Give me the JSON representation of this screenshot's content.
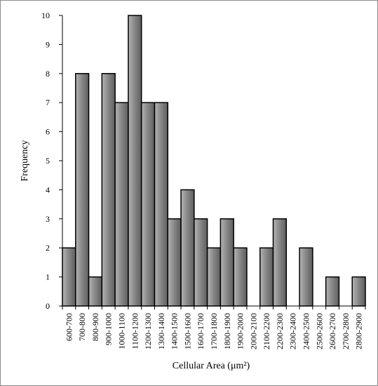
{
  "chart_data": {
    "type": "bar",
    "title": "",
    "xlabel": "Cellular Area (μm²)",
    "ylabel": "Frequency",
    "ylim": [
      0,
      10
    ],
    "yticks": [
      "0",
      "1",
      "2",
      "3",
      "4",
      "5",
      "6",
      "7",
      "8",
      "9",
      "10"
    ],
    "grid": false,
    "categories": [
      "600-700",
      "700-800",
      "800-900",
      "900-1000",
      "1000-1100",
      "1100-1200",
      "1200-1300",
      "1300-1400",
      "1400-1500",
      "1500-1600",
      "1600-1700",
      "1700-1800",
      "1800-1900",
      "1900-2000",
      "2000-2100",
      "2100-2200",
      "2200-2300",
      "2300-2400",
      "2400-2500",
      "2500-2600",
      "2600-2700",
      "2700-2800",
      "2800-2900"
    ],
    "values": [
      2,
      8,
      1,
      8,
      7,
      10,
      7,
      7,
      3,
      4,
      3,
      2,
      3,
      2,
      0,
      2,
      3,
      0,
      2,
      0,
      1,
      0,
      1
    ],
    "bar_color": "#808080",
    "bar_edge_color": "#000000"
  }
}
